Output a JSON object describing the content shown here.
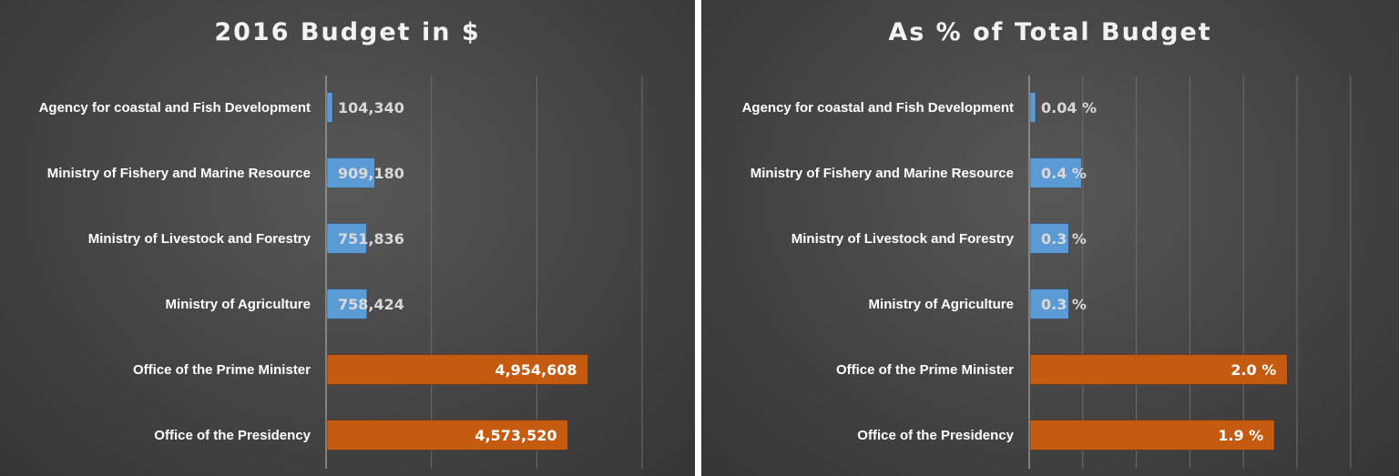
{
  "colors": {
    "bar_small": "#5b9bd5",
    "bar_large": "#c55a11",
    "gridline": "#6e6e6e",
    "axis": "#bfbfbf",
    "label_outside": "#d9d9d9",
    "label_inside": "#ffffff"
  },
  "chart_data": [
    {
      "type": "bar",
      "orientation": "horizontal",
      "title": "2016 Budget in $",
      "categories": [
        "Agency for coastal and Fish Development",
        "Ministry of Fishery and Marine Resource",
        "Ministry of Livestock and Forestry",
        "Ministry of Agriculture",
        "Office of the Prime Minister",
        "Office of the Presidency"
      ],
      "values": [
        104340,
        909180,
        751836,
        758424,
        4954608,
        4573520
      ],
      "labels": [
        "104,340",
        "909,180",
        "751,836",
        "758,424",
        "4,954,608",
        "4,573,520"
      ],
      "xlim": [
        0,
        6000000
      ],
      "grid": true,
      "legend": "none"
    },
    {
      "type": "bar",
      "orientation": "horizontal",
      "title": "As % of Total Budget",
      "categories": [
        "Agency for coastal and Fish Development",
        "Ministry of Fishery and Marine Resource",
        "Ministry of Livestock and Forestry",
        "Ministry of Agriculture",
        "Office of the Prime Minister",
        "Office of the Presidency"
      ],
      "values": [
        0.04,
        0.4,
        0.3,
        0.3,
        2.0,
        1.9
      ],
      "labels": [
        "0.04 %",
        "0.4 %",
        "0.3 %",
        "0.3 %",
        "2.0 %",
        "1.9 %"
      ],
      "xlim": [
        0,
        2.6
      ],
      "grid": true,
      "legend": "none"
    }
  ]
}
